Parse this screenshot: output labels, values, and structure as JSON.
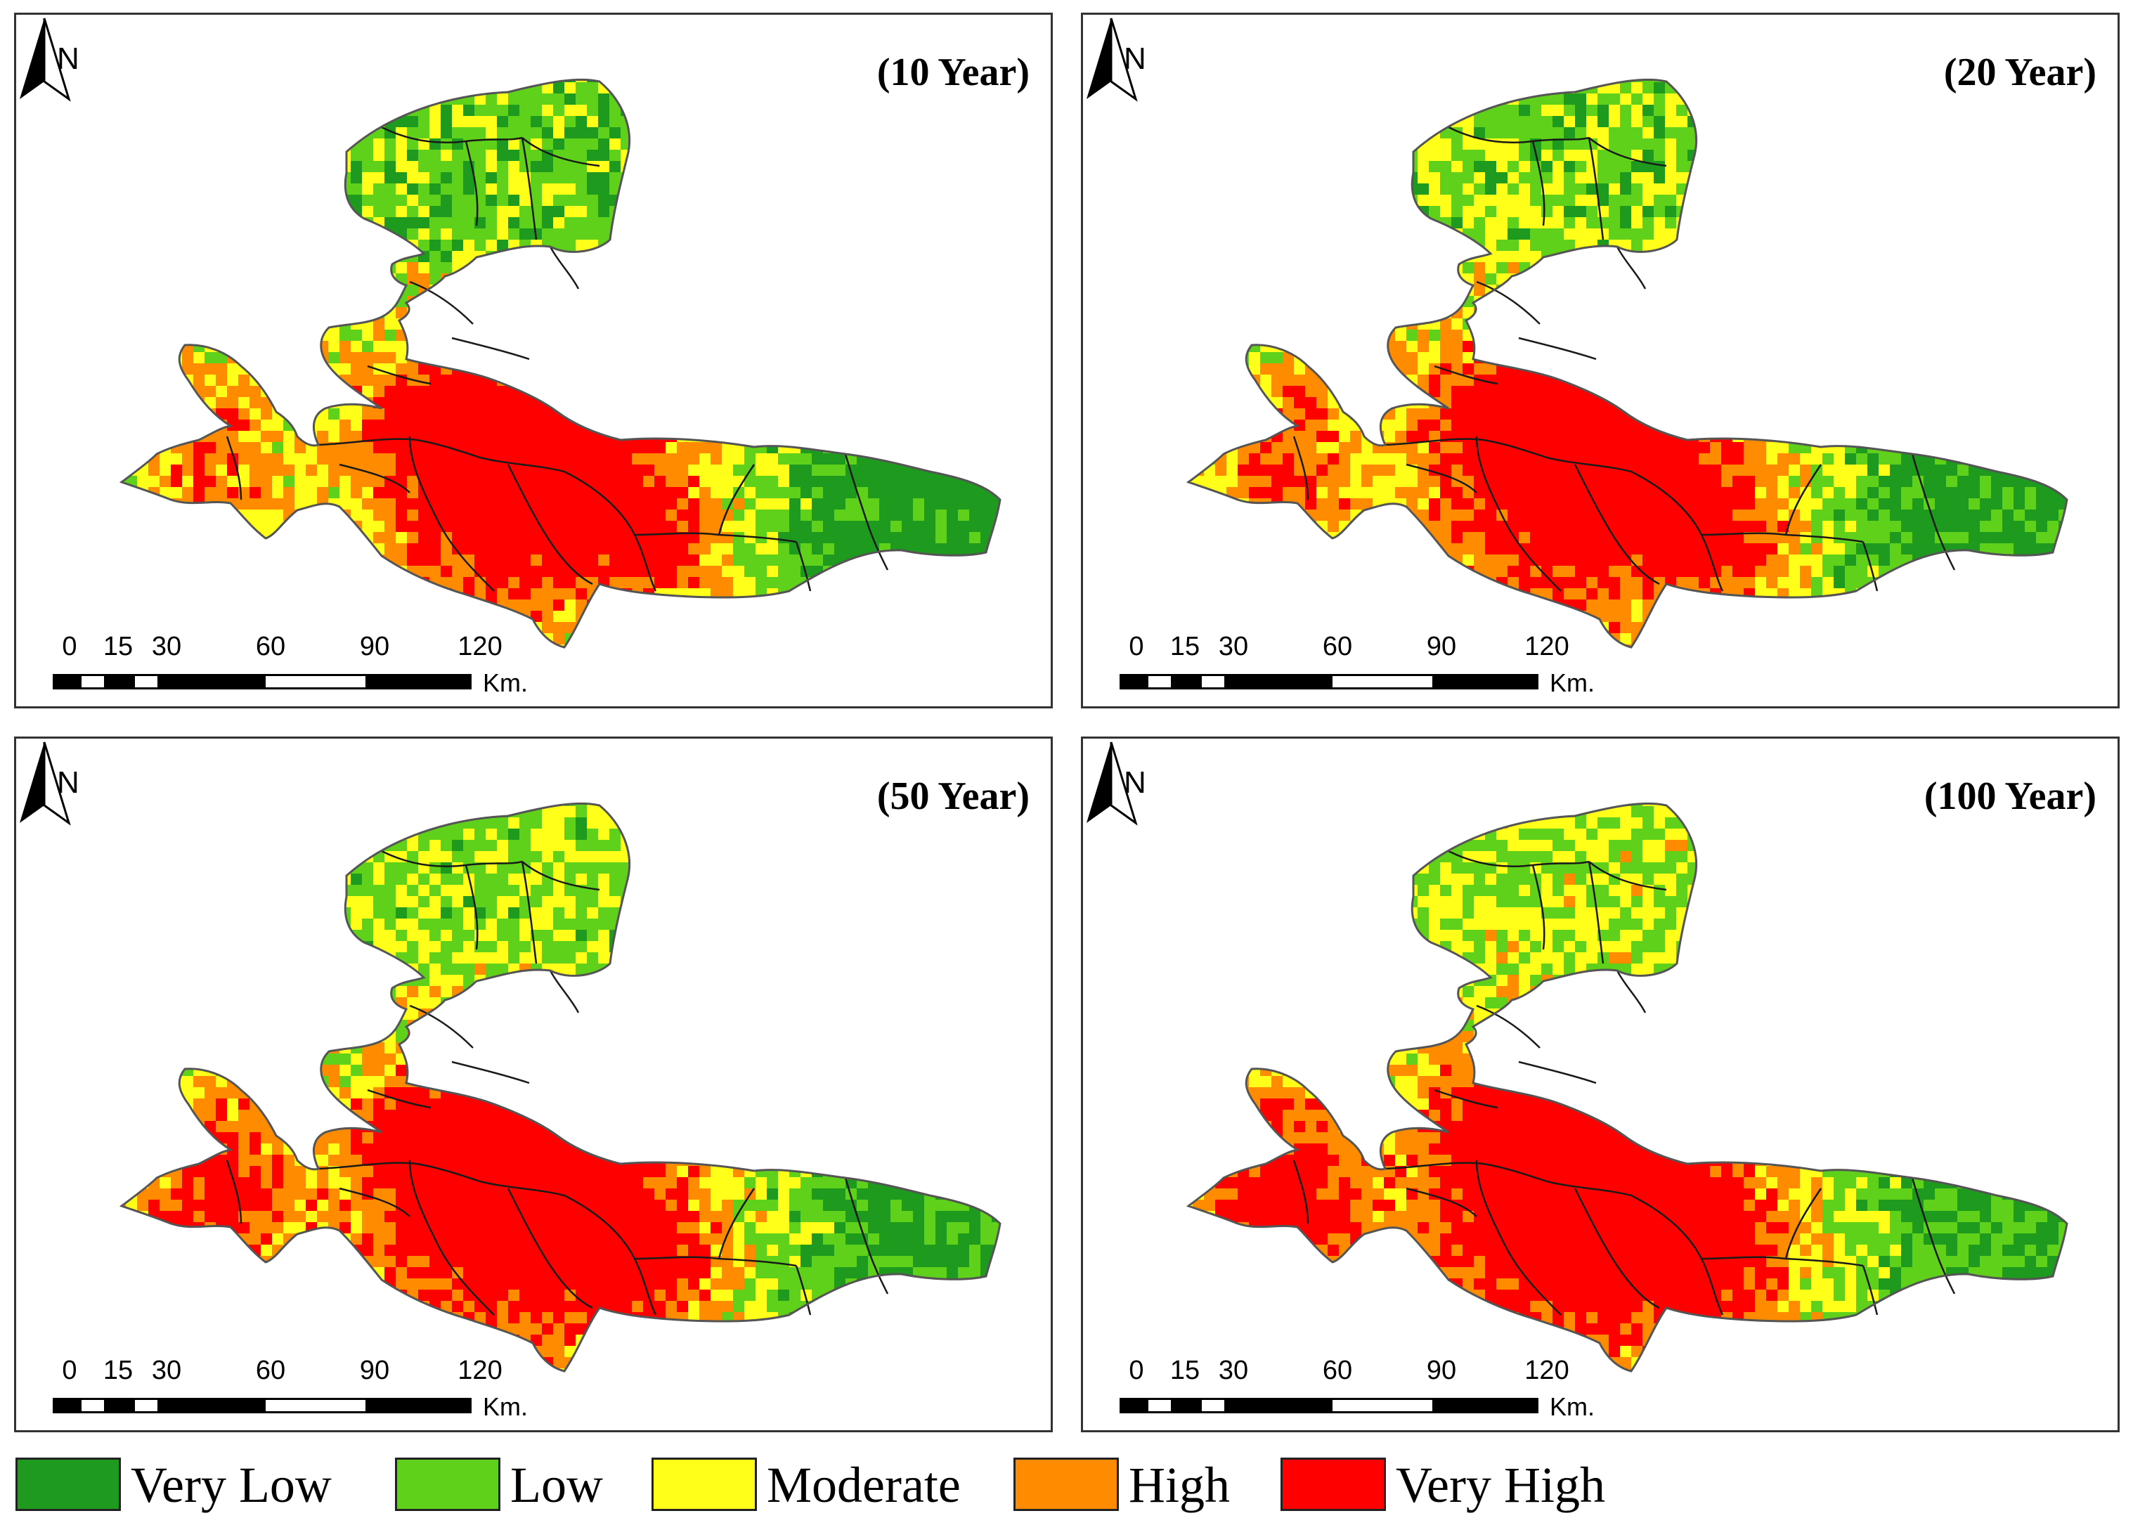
{
  "panels": [
    {
      "title": "(10 Year)",
      "risk_level": 0
    },
    {
      "title": "(20 Year)",
      "risk_level": 1
    },
    {
      "title": "(50 Year)",
      "risk_level": 2
    },
    {
      "title": "(100 Year)",
      "risk_level": 3
    }
  ],
  "north_label": "N",
  "scale": {
    "ticks": [
      "0",
      "15",
      "30",
      "60",
      "90",
      "120"
    ],
    "unit": "Km."
  },
  "legend": [
    {
      "label": "Very Low",
      "color": "#1e9a1e"
    },
    {
      "label": "Low",
      "color": "#5fd11a"
    },
    {
      "label": "Moderate",
      "color": "#ffff1a"
    },
    {
      "label": "High",
      "color": "#ff8c00"
    },
    {
      "label": "Very High",
      "color": "#ff0000"
    }
  ]
}
